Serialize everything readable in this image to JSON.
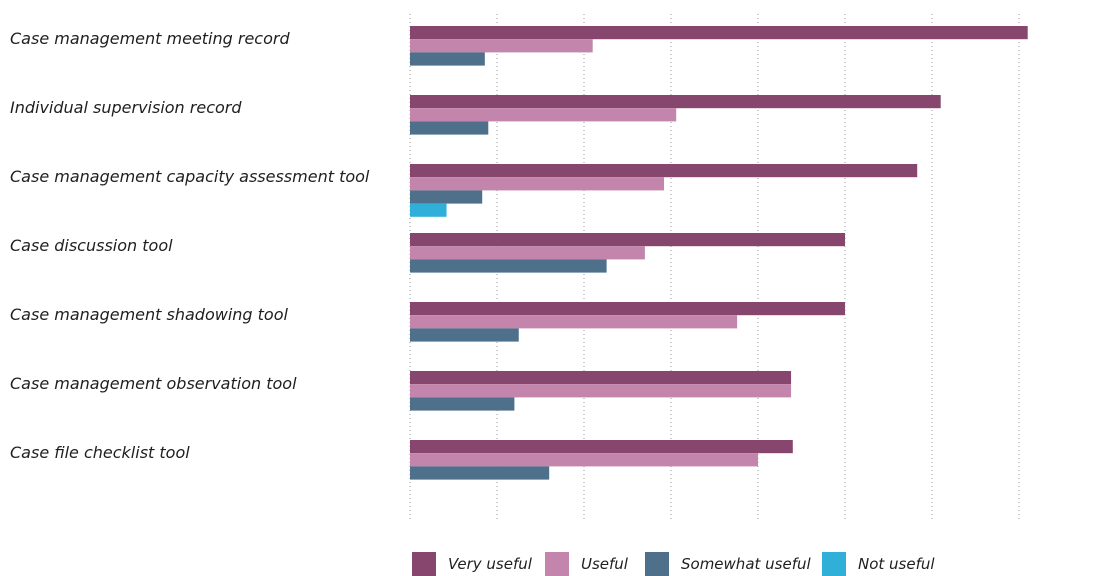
{
  "chart_data": {
    "type": "bar",
    "orientation": "horizontal",
    "categories": [
      "Case management meeting record",
      "Individual supervision record",
      "Case management capacity assessment tool",
      "Case discussion tool",
      "Case management shadowing tool",
      "Case management observation tool",
      "Case file checklist tool"
    ],
    "series": [
      {
        "name": "Very useful",
        "color": "#87466d",
        "values": [
          71,
          61,
          58.3,
          50,
          50,
          43.8,
          44
        ]
      },
      {
        "name": "Useful",
        "color": "#c385ab",
        "values": [
          21,
          30.6,
          29.2,
          27,
          37.6,
          43.8,
          40
        ]
      },
      {
        "name": "Somewhat useful",
        "color": "#4e708a",
        "values": [
          8.6,
          9,
          8.3,
          22.6,
          12.5,
          12,
          16
        ]
      },
      {
        "name": "Not useful",
        "color": "#30b0d9",
        "values": [
          0,
          0,
          4.2,
          0,
          0,
          0,
          0
        ]
      }
    ],
    "xlim": [
      0,
      80
    ],
    "grid": true,
    "grid_interval": 10,
    "legend_position": "bottom",
    "title": "",
    "xlabel": "",
    "ylabel": ""
  }
}
